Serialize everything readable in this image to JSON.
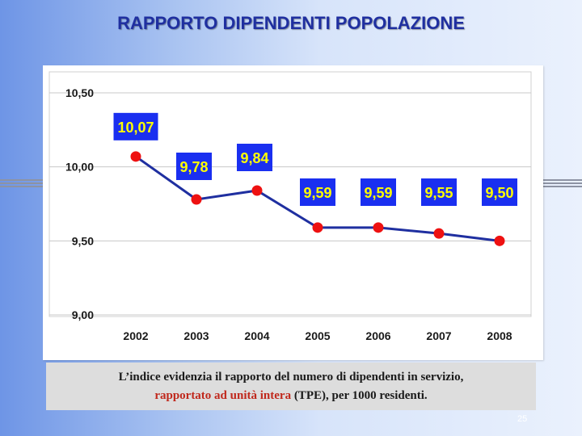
{
  "slide": {
    "title": "RAPPORTO DIPENDENTI POPOLAZIONE",
    "page_number": "25"
  },
  "caption": {
    "line1": "L’indice evidenzia il rapporto del numero di dipendenti in servizio,",
    "line2_part1": "rapportato ad unità intera",
    "line2_part2": " (TPE), per 1000 residenti.",
    "highlight_color": "#c0281c"
  },
  "chart_data": {
    "type": "line",
    "title": "",
    "xlabel": "",
    "ylabel": "",
    "categories": [
      "2002",
      "2003",
      "2004",
      "2005",
      "2006",
      "2007",
      "2008"
    ],
    "series": [
      {
        "name": "Rapporto dipendenti popolazione",
        "values": [
          10.07,
          9.78,
          9.84,
          9.59,
          9.59,
          9.55,
          9.5
        ],
        "data_labels": [
          "10,07",
          "9,78",
          "9,84",
          "9,59",
          "9,59",
          "9,55",
          "9,50"
        ],
        "line_color": "#1f2fa0",
        "marker_color": "#ee1111",
        "label_box_color": "#1a2ff0",
        "label_text_color": "#ffff00"
      }
    ],
    "ylim": [
      9.0,
      10.5
    ],
    "yticks": [
      9.0,
      9.5,
      10.0,
      10.5
    ],
    "ytick_labels": [
      "9,00",
      "9,50",
      "10,00",
      "10,50"
    ],
    "grid": true
  }
}
